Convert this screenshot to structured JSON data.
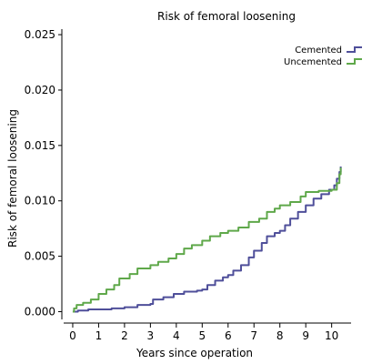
{
  "chart_data": {
    "type": "line",
    "title": "Risk of femoral loosening",
    "xlabel": "Years since operation",
    "ylabel": "Risk of femoral loosening",
    "xlim": [
      -0.35,
      10.75
    ],
    "ylim": [
      -0.0007,
      0.0255
    ],
    "x_ticks": [
      0,
      1,
      2,
      3,
      4,
      5,
      6,
      7,
      8,
      9,
      10
    ],
    "x_tick_labels": [
      "0",
      "1",
      "2",
      "3",
      "4",
      "5",
      "6",
      "7",
      "8",
      "9",
      "10"
    ],
    "y_ticks": [
      0,
      0.005,
      0.01,
      0.015,
      0.02,
      0.025
    ],
    "y_tick_labels": [
      "0.000",
      "0.005",
      "0.010",
      "0.015",
      "0.020",
      "0.025"
    ],
    "grid": false,
    "legend_position": "top-right",
    "step": true,
    "series": [
      {
        "name": "Cemented",
        "color": "#4f4f9a",
        "points": [
          [
            0.0,
            0.0
          ],
          [
            0.2,
            0.0001
          ],
          [
            0.6,
            0.0002
          ],
          [
            1.0,
            0.0002
          ],
          [
            1.5,
            0.0003
          ],
          [
            2.0,
            0.0004
          ],
          [
            2.5,
            0.0006
          ],
          [
            3.0,
            0.0007
          ],
          [
            3.1,
            0.0011
          ],
          [
            3.5,
            0.0013
          ],
          [
            3.9,
            0.0016
          ],
          [
            4.3,
            0.0018
          ],
          [
            4.8,
            0.0019
          ],
          [
            5.0,
            0.002
          ],
          [
            5.2,
            0.0024
          ],
          [
            5.5,
            0.0028
          ],
          [
            5.8,
            0.0031
          ],
          [
            6.0,
            0.0033
          ],
          [
            6.2,
            0.0037
          ],
          [
            6.5,
            0.0042
          ],
          [
            6.8,
            0.0049
          ],
          [
            7.0,
            0.0055
          ],
          [
            7.3,
            0.0062
          ],
          [
            7.5,
            0.0068
          ],
          [
            7.8,
            0.0071
          ],
          [
            8.0,
            0.0073
          ],
          [
            8.2,
            0.0078
          ],
          [
            8.4,
            0.0084
          ],
          [
            8.7,
            0.009
          ],
          [
            9.0,
            0.0096
          ],
          [
            9.3,
            0.0102
          ],
          [
            9.6,
            0.0106
          ],
          [
            9.9,
            0.011
          ],
          [
            10.1,
            0.0114
          ],
          [
            10.2,
            0.012
          ],
          [
            10.3,
            0.0126
          ],
          [
            10.35,
            0.0131
          ]
        ]
      },
      {
        "name": "Uncemented",
        "color": "#5fa84a",
        "points": [
          [
            0.0,
            0.0
          ],
          [
            0.05,
            0.0003
          ],
          [
            0.15,
            0.0006
          ],
          [
            0.4,
            0.0008
          ],
          [
            0.7,
            0.0011
          ],
          [
            1.0,
            0.0016
          ],
          [
            1.3,
            0.002
          ],
          [
            1.6,
            0.0024
          ],
          [
            1.8,
            0.003
          ],
          [
            2.2,
            0.0034
          ],
          [
            2.5,
            0.0039
          ],
          [
            3.0,
            0.0042
          ],
          [
            3.3,
            0.0045
          ],
          [
            3.7,
            0.0048
          ],
          [
            4.0,
            0.0052
          ],
          [
            4.3,
            0.0057
          ],
          [
            4.6,
            0.006
          ],
          [
            5.0,
            0.0064
          ],
          [
            5.3,
            0.0068
          ],
          [
            5.7,
            0.0071
          ],
          [
            6.0,
            0.0073
          ],
          [
            6.4,
            0.0076
          ],
          [
            6.8,
            0.0081
          ],
          [
            7.2,
            0.0084
          ],
          [
            7.5,
            0.009
          ],
          [
            7.8,
            0.0093
          ],
          [
            8.0,
            0.0096
          ],
          [
            8.4,
            0.0099
          ],
          [
            8.8,
            0.0104
          ],
          [
            9.0,
            0.0108
          ],
          [
            9.5,
            0.0109
          ],
          [
            10.0,
            0.011
          ],
          [
            10.2,
            0.0116
          ],
          [
            10.3,
            0.0124
          ],
          [
            10.35,
            0.013
          ]
        ]
      }
    ]
  }
}
